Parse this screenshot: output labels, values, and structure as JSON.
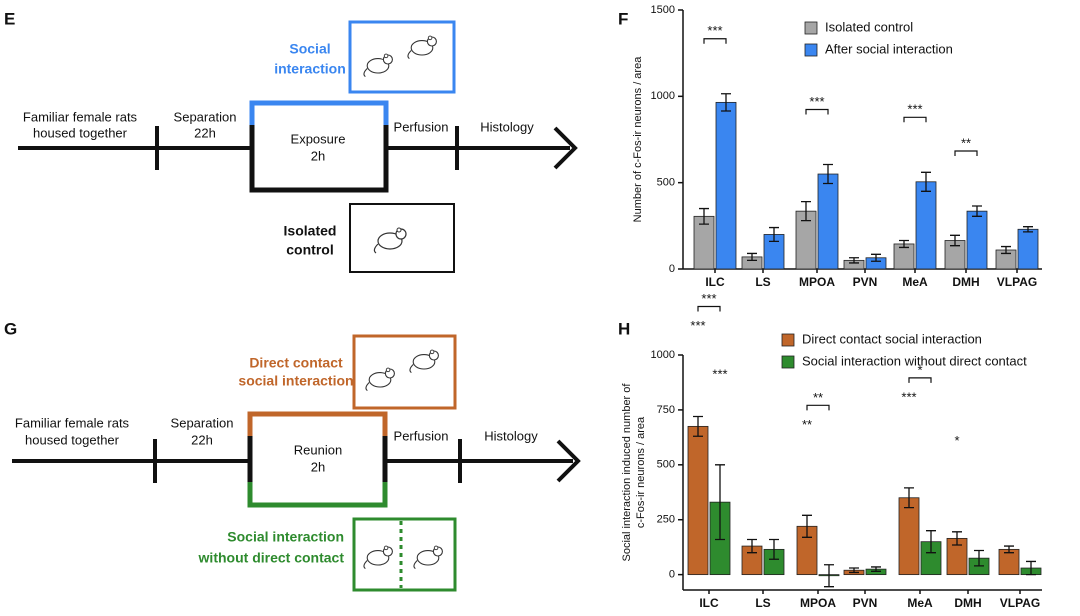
{
  "diagrams": [
    {
      "panel": "E",
      "start": [
        "Familiar female rats",
        "housed together"
      ],
      "separation": [
        "Separation",
        "22h"
      ],
      "exposure": [
        "Exposure",
        "2h"
      ],
      "perfusion": "Perfusion",
      "histology": "Histology",
      "condition_a": [
        "Social",
        "interaction"
      ],
      "condition_b": [
        "Isolated",
        "control"
      ]
    },
    {
      "panel": "G",
      "start": [
        "Familiar female rats",
        "housed together"
      ],
      "separation": [
        "Separation",
        "22h"
      ],
      "exposure": [
        "Reunion",
        "2h"
      ],
      "perfusion": "Perfusion",
      "histology": "Histology",
      "condition_a": [
        "Direct contact",
        "social interaction"
      ],
      "condition_b": [
        "Social interaction",
        "without direct contact"
      ]
    }
  ],
  "chart_data": [
    {
      "type": "bar",
      "panel": "F",
      "ylabel": [
        "Number of c-Fos-ir neurons / area"
      ],
      "categories": [
        "ILC",
        "LS",
        "MPOA",
        "PVN",
        "MeA",
        "DMH",
        "VLPAG"
      ],
      "series": [
        {
          "name": "Isolated control",
          "color": "#a6a6a6",
          "values": [
            305,
            70,
            335,
            50,
            145,
            165,
            110
          ],
          "errors": [
            45,
            20,
            55,
            15,
            20,
            30,
            20
          ]
        },
        {
          "name": "After social interaction",
          "color": "#3a86f0",
          "values": [
            965,
            200,
            550,
            65,
            505,
            335,
            230
          ],
          "errors": [
            50,
            40,
            55,
            20,
            55,
            30,
            15
          ]
        }
      ],
      "bracket_labels": [
        "***",
        null,
        "***",
        null,
        "***",
        "**",
        null
      ],
      "ylim": [
        0,
        1500
      ],
      "yticks": [
        0,
        500,
        1000,
        1500
      ]
    },
    {
      "type": "bar",
      "panel": "H",
      "ylabel": [
        "Social interaction induced number of",
        "c-Fos-ir neurons / area"
      ],
      "categories": [
        "ILC",
        "LS",
        "MPOA",
        "PVN",
        "MeA",
        "DMH",
        "VLPAG"
      ],
      "series": [
        {
          "name": "Direct contact social interaction",
          "color": "#c0662a",
          "values": [
            675,
            130,
            220,
            20,
            350,
            165,
            115
          ],
          "errors": [
            45,
            30,
            50,
            10,
            45,
            30,
            15
          ],
          "star_labels": [
            "***",
            null,
            "**",
            null,
            "***",
            "*",
            null
          ]
        },
        {
          "name": "Social interaction without direct contact",
          "color": "#2e8b2e",
          "values": [
            330,
            115,
            -5,
            25,
            150,
            75,
            30
          ],
          "errors": [
            170,
            45,
            50,
            10,
            50,
            35,
            30
          ],
          "star_labels": [
            "***",
            null,
            null,
            null,
            null,
            null,
            null
          ]
        }
      ],
      "bracket_labels": [
        "***",
        null,
        "**",
        null,
        "*",
        null,
        null
      ],
      "ylim": [
        -70,
        1000
      ],
      "yticks": [
        0,
        250,
        500,
        750,
        1000
      ]
    }
  ]
}
